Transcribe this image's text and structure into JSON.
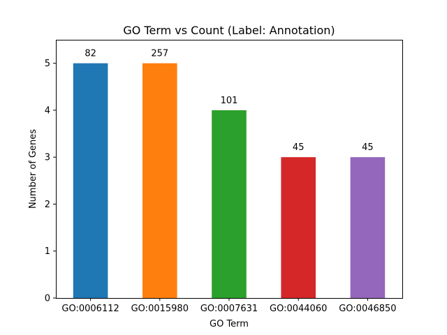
{
  "chart_data": {
    "type": "bar",
    "title": "GO Term vs Count (Label: Annotation)",
    "xlabel": "GO Term",
    "ylabel": "Number of Genes",
    "categories": [
      "GO:0006112",
      "GO:0015980",
      "GO:0007631",
      "GO:0044060",
      "GO:0046850"
    ],
    "values": [
      5,
      5,
      4,
      3,
      3
    ],
    "labels": [
      "82",
      "257",
      "101",
      "45",
      "45"
    ],
    "colors": [
      "#1f77b4",
      "#ff7f0e",
      "#2ca02c",
      "#d62728",
      "#9467bd"
    ],
    "ylim": [
      0,
      5.5
    ],
    "yticks": [
      "0",
      "1",
      "2",
      "3",
      "4",
      "5"
    ],
    "grid": false
  }
}
